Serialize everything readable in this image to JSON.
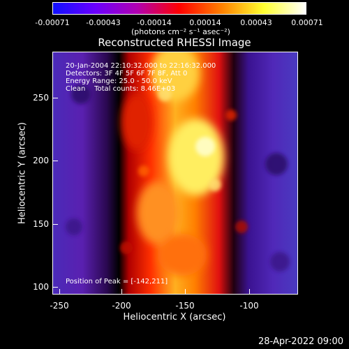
{
  "colorbar": {
    "tick_labels": [
      "-0.00071",
      "-0.00043",
      "-0.00014",
      "0.00014",
      "0.00043",
      "0.00071"
    ],
    "unit_label": "(photons cm⁻² s⁻¹ asec⁻²)",
    "colors": [
      "#1010ff",
      "#6a00ff",
      "#b000b0",
      "#ff0000",
      "#ff8000",
      "#ffff30",
      "#ffffff"
    ]
  },
  "title": "Reconstructed RHESSI Image",
  "info": {
    "time_range": "20-Jan-2004 22:10:32.000 to 22:16:32.000",
    "detectors": "Detectors: 3F 4F 5F 6F 7F 8F, Att 0",
    "energy": "Energy Range: 25.0 - 50.0 keV",
    "clean": "Clean    Total counts: 8.46E+03",
    "peak": "Position of Peak = [-142,211]"
  },
  "axes": {
    "xlabel": "Heliocentric X (arcsec)",
    "ylabel": "Heliocentric Y (arcsec)",
    "xticks": [
      "-250",
      "-200",
      "-150",
      "-100"
    ],
    "yticks": [
      "250",
      "200",
      "150",
      "100"
    ]
  },
  "timestamp": "28-Apr-2022 09:00"
}
